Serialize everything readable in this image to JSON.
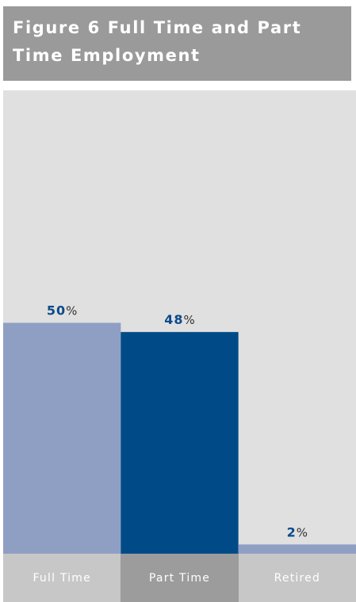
{
  "chart_data": {
    "type": "bar",
    "title": "Figure 6 Full Time and Part Time Employment",
    "categories": [
      "Full Time",
      "Part Time",
      "Retired"
    ],
    "values": [
      50,
      48,
      2
    ],
    "data_labels": [
      "50",
      "48",
      "2"
    ],
    "value_suffix": "%",
    "ylim": [
      0,
      100
    ],
    "grid": false,
    "legend": "none",
    "colors": {
      "bars": [
        "#8f9fc4",
        "#004b87",
        "#8f9fc4"
      ],
      "category_cells": [
        "#c7c7c7",
        "#9c9c9c",
        "#c7c7c7"
      ],
      "label_number": "#0b4a8b",
      "label_percent": "#333333",
      "plot_background": "#e0e0e0",
      "header_background": "#9a9a9a"
    }
  }
}
